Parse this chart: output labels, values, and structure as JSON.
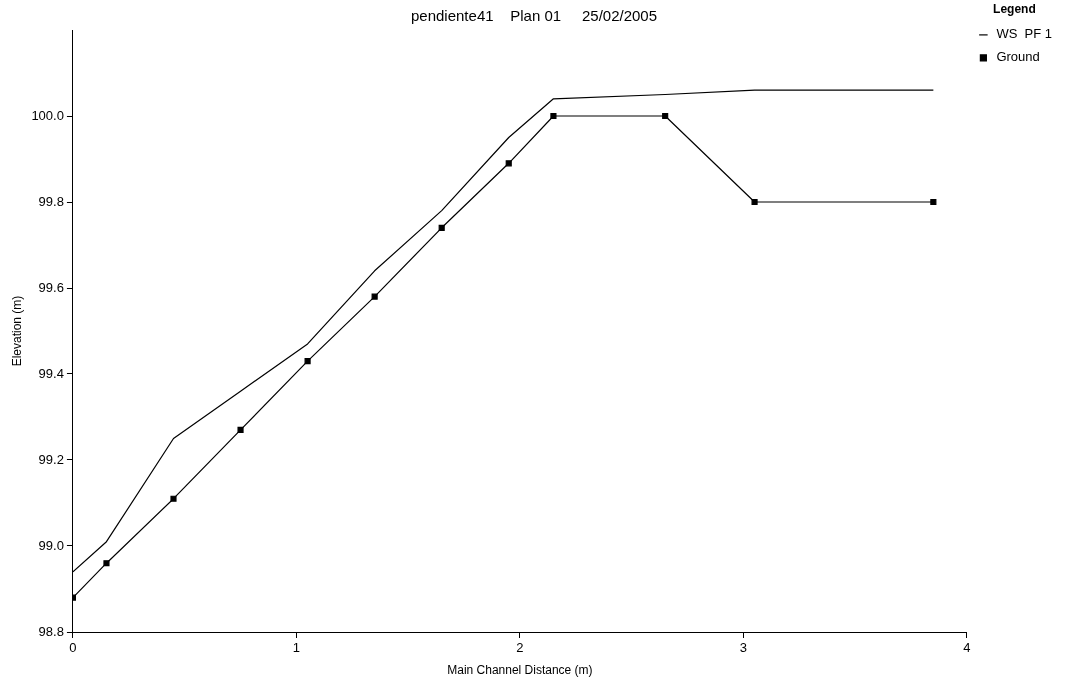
{
  "chart_data": {
    "type": "line",
    "title": "pendiente41    Plan 01     25/02/2005",
    "xlabel": "Main Channel Distance (m)",
    "ylabel": "Elevation (m)",
    "legend_title": "Legend",
    "legend": "top right",
    "grid": false,
    "xlim": [
      0,
      4
    ],
    "xticks": [
      0,
      1,
      2,
      3,
      4
    ],
    "ylim": [
      98.8,
      100.2
    ],
    "yticks": [
      {
        "value": 98.8,
        "label": "98.8"
      },
      {
        "value": 99.0,
        "label": "99.0"
      },
      {
        "value": 99.2,
        "label": "99.2"
      },
      {
        "value": 99.4,
        "label": "99.4"
      },
      {
        "value": 99.6,
        "label": "99.6"
      },
      {
        "value": 99.8,
        "label": "99.8"
      },
      {
        "value": 100.0,
        "label": "100.0"
      }
    ],
    "x": [
      0,
      0.15,
      0.45,
      0.75,
      1.05,
      1.35,
      1.65,
      1.95,
      2.15,
      2.65,
      3.05,
      3.85
    ],
    "series": [
      {
        "name": "WS  PF 1",
        "color": "#000000",
        "marker": "none",
        "values": [
          98.94,
          99.01,
          99.25,
          99.36,
          99.47,
          99.64,
          99.78,
          99.95,
          100.04,
          100.05,
          100.06,
          100.06
        ]
      },
      {
        "name": "Ground",
        "color": "#000000",
        "marker": "square",
        "values": [
          98.88,
          98.96,
          99.11,
          99.27,
          99.43,
          99.58,
          99.74,
          99.89,
          100.0,
          100.0,
          99.8,
          99.8
        ]
      }
    ]
  }
}
